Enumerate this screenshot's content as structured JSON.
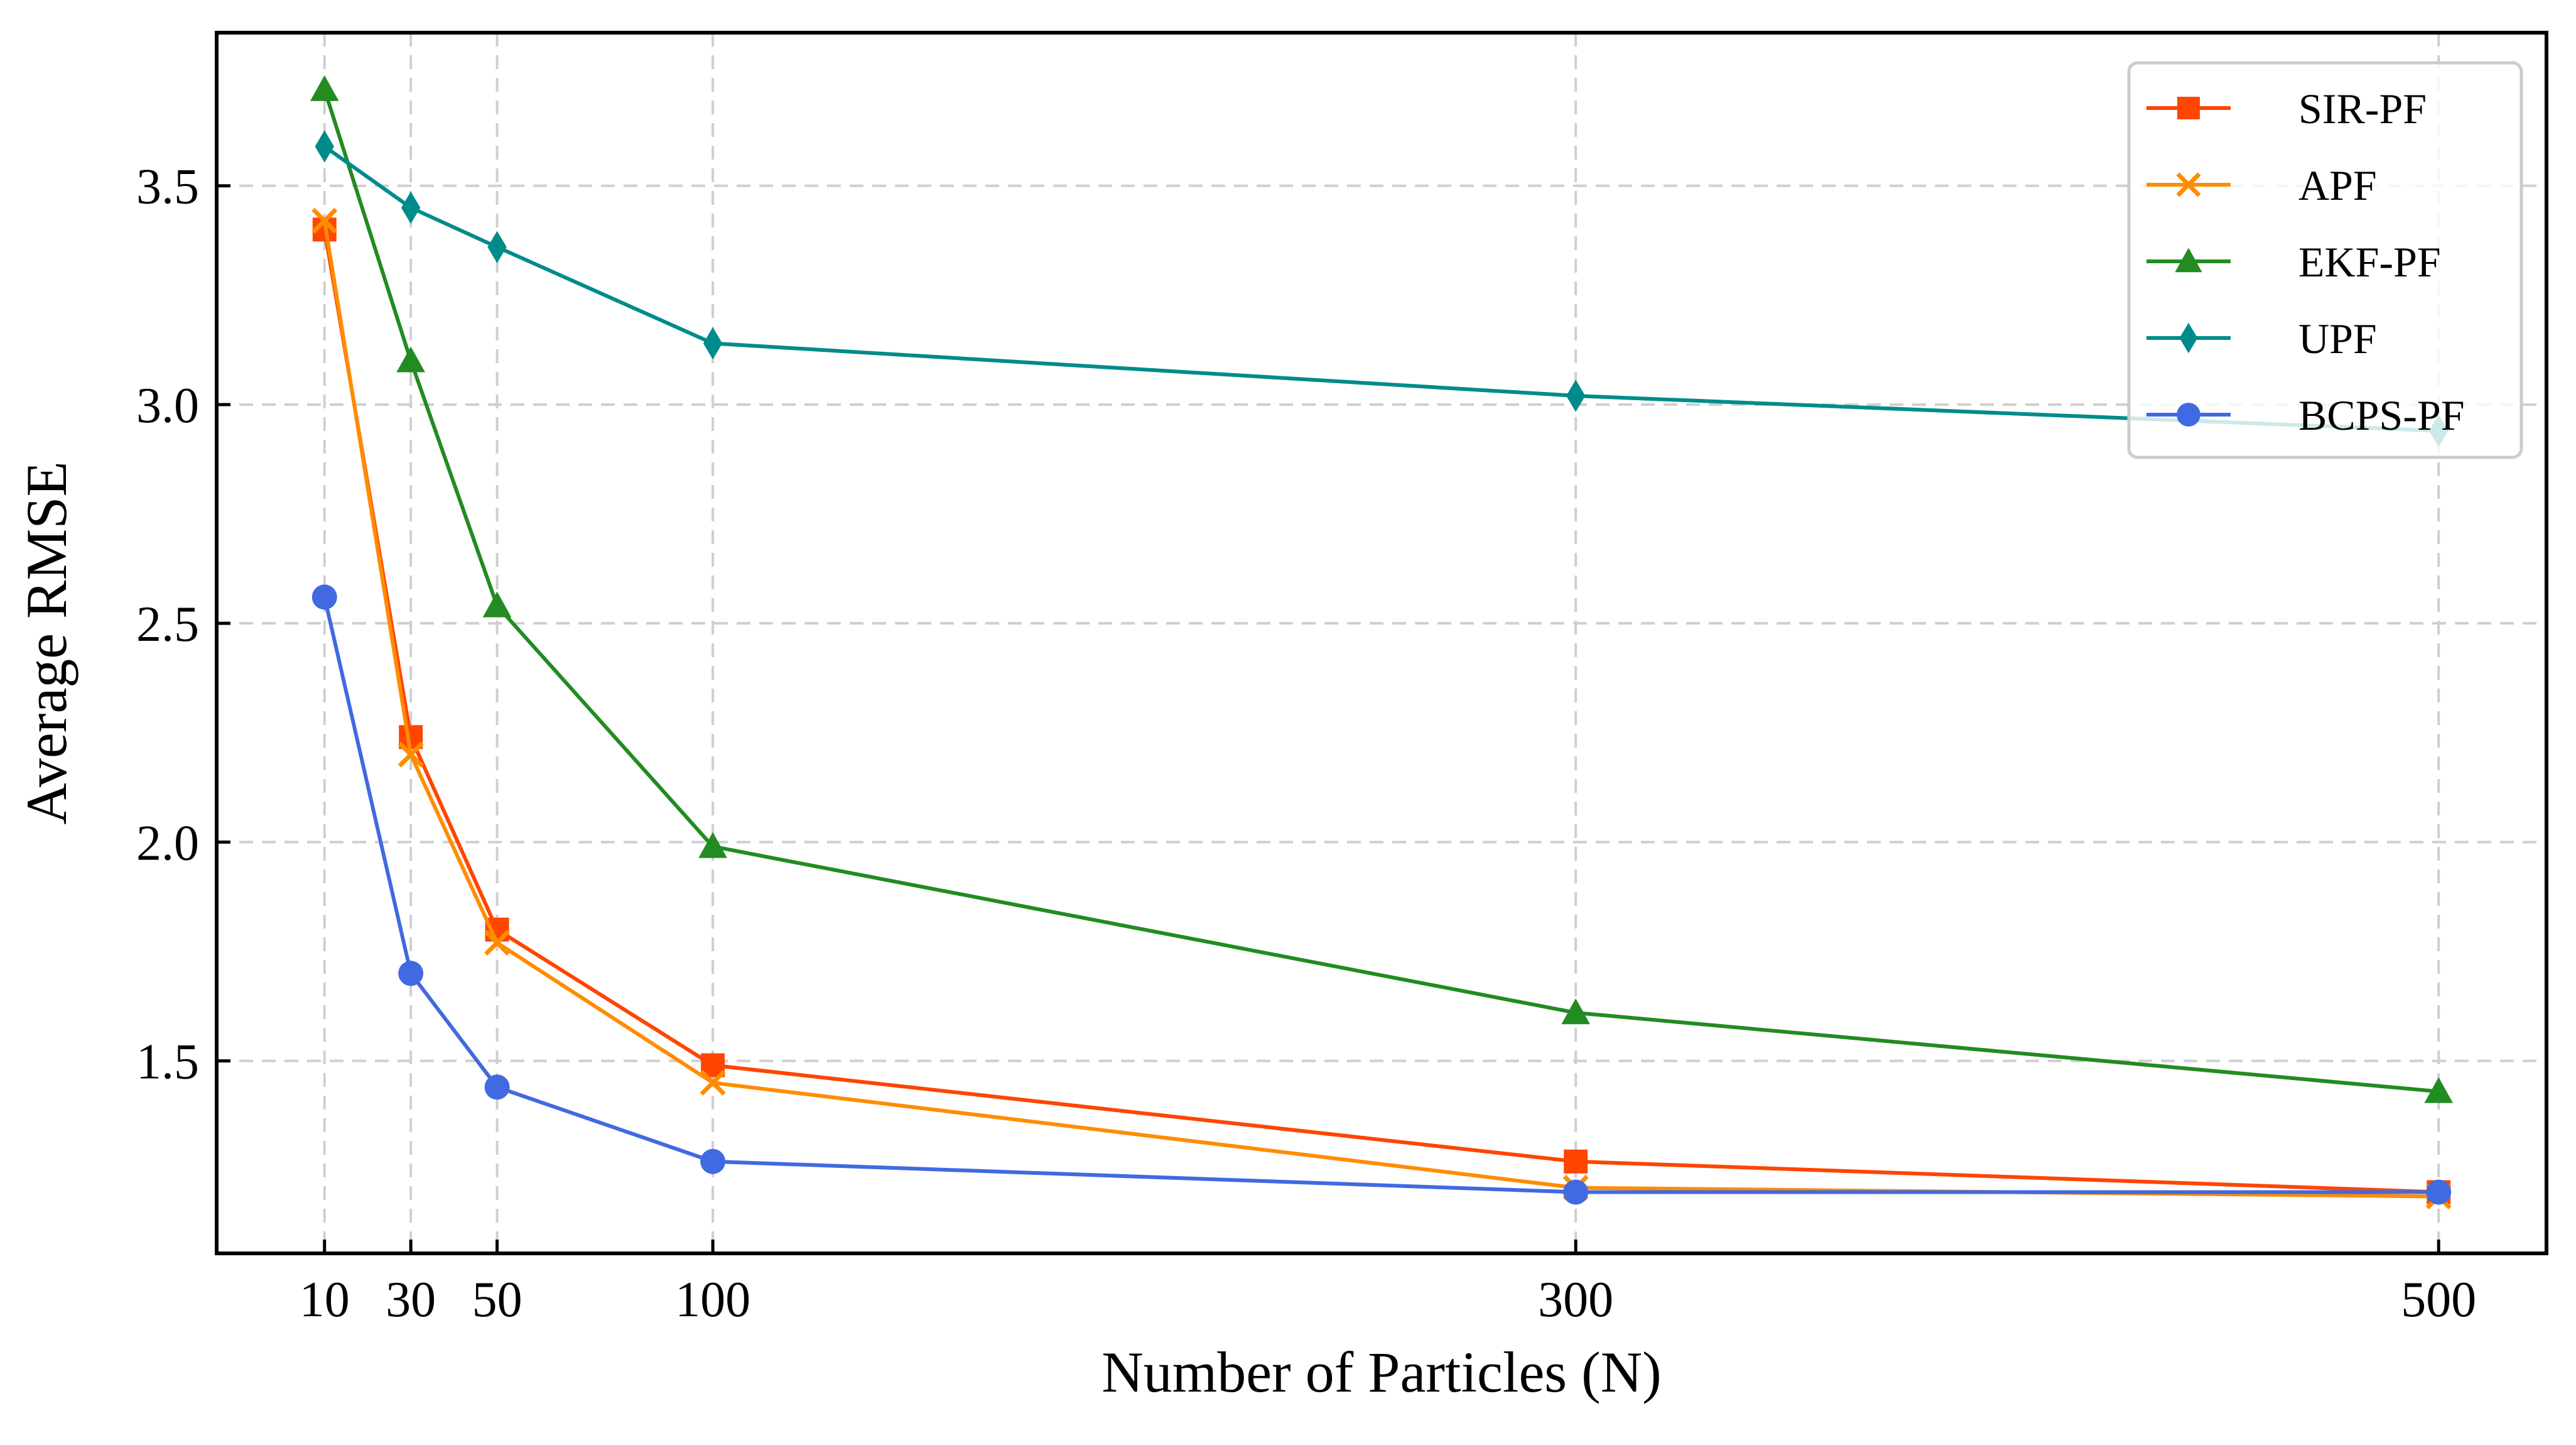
{
  "chart_data": {
    "type": "line",
    "xlabel": "Number of Particles (N)",
    "ylabel": "Average RMSE",
    "x": [
      10,
      30,
      50,
      100,
      300,
      500
    ],
    "xticks": [
      10,
      30,
      50,
      100,
      300,
      500
    ],
    "yticks": [
      1.5,
      2.0,
      2.5,
      3.0,
      3.5
    ],
    "xlim": [
      -15,
      525
    ],
    "ylim": [
      1.06,
      3.85
    ],
    "grid": true,
    "legend_position": "top-right",
    "series": [
      {
        "name": "SIR-PF",
        "color": "#ff4500",
        "marker": "square",
        "values": [
          3.4,
          2.24,
          1.8,
          1.49,
          1.27,
          1.2
        ]
      },
      {
        "name": "APF",
        "color": "#ff8c00",
        "marker": "x",
        "values": [
          3.42,
          2.2,
          1.77,
          1.45,
          1.21,
          1.19
        ]
      },
      {
        "name": "EKF-PF",
        "color": "#228b22",
        "marker": "triangle",
        "values": [
          3.72,
          3.1,
          2.54,
          1.99,
          1.61,
          1.43
        ]
      },
      {
        "name": "UPF",
        "color": "#008b8b",
        "marker": "diamond",
        "values": [
          3.59,
          3.45,
          3.36,
          3.14,
          3.02,
          2.94
        ]
      },
      {
        "name": "BCPS-PF",
        "color": "#4169e1",
        "marker": "circle",
        "values": [
          2.56,
          1.7,
          1.44,
          1.27,
          1.2,
          1.2
        ]
      }
    ]
  }
}
